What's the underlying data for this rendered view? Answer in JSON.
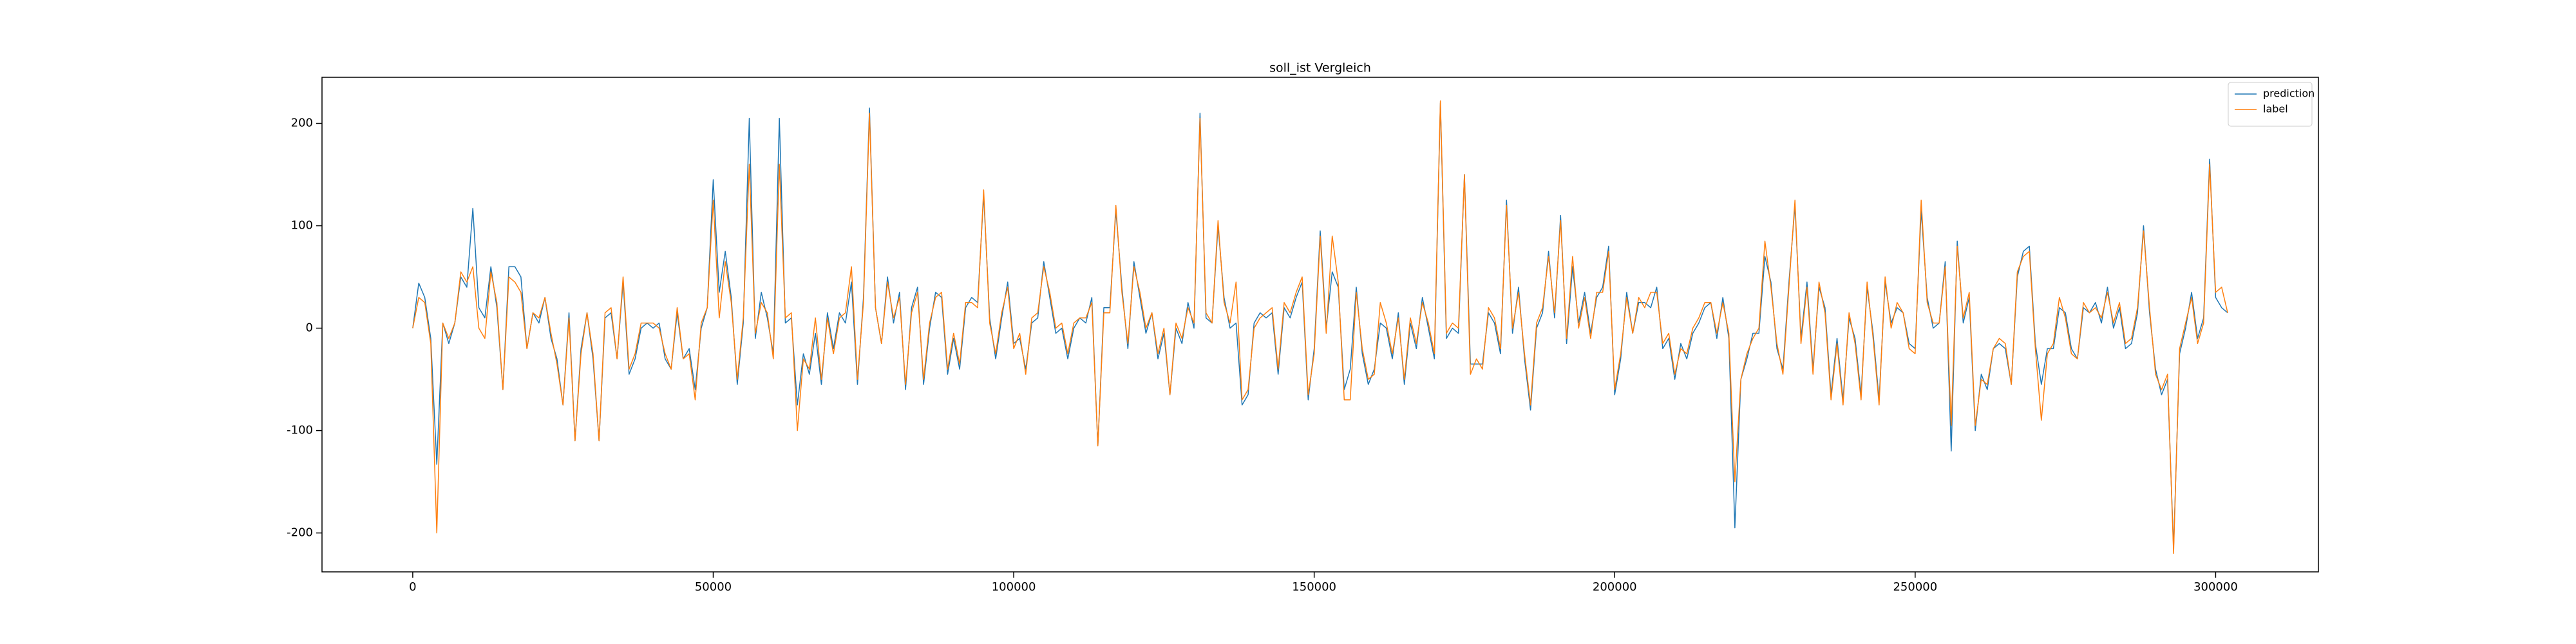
{
  "chart_data": {
    "type": "line",
    "title": "soll_ist Vergleich",
    "title_color": "#ff0000",
    "x": [
      0,
      1000,
      2000,
      3000,
      4000,
      5000,
      6000,
      7000,
      8000,
      9000,
      10000,
      11000,
      12000,
      13000,
      14000,
      15000,
      16000,
      17000,
      18000,
      19000,
      20000,
      21000,
      22000,
      23000,
      24000,
      25000,
      26000,
      27000,
      28000,
      29000,
      30000,
      31000,
      32000,
      33000,
      34000,
      35000,
      36000,
      37000,
      38000,
      39000,
      40000,
      41000,
      42000,
      43000,
      44000,
      45000,
      46000,
      47000,
      48000,
      49000,
      50000,
      51000,
      52000,
      53000,
      54000,
      55000,
      56000,
      57000,
      58000,
      59000,
      60000,
      61000,
      62000,
      63000,
      64000,
      65000,
      66000,
      67000,
      68000,
      69000,
      70000,
      71000,
      72000,
      73000,
      74000,
      75000,
      76000,
      77000,
      78000,
      79000,
      80000,
      81000,
      82000,
      83000,
      84000,
      85000,
      86000,
      87000,
      88000,
      89000,
      90000,
      91000,
      92000,
      93000,
      94000,
      95000,
      96000,
      97000,
      98000,
      99000,
      100000,
      101000,
      102000,
      103000,
      104000,
      105000,
      106000,
      107000,
      108000,
      109000,
      110000,
      111000,
      112000,
      113000,
      114000,
      115000,
      116000,
      117000,
      118000,
      119000,
      120000,
      121000,
      122000,
      123000,
      124000,
      125000,
      126000,
      127000,
      128000,
      129000,
      130000,
      131000,
      132000,
      133000,
      134000,
      135000,
      136000,
      137000,
      138000,
      139000,
      140000,
      141000,
      142000,
      143000,
      144000,
      145000,
      146000,
      147000,
      148000,
      149000,
      150000,
      151000,
      152000,
      153000,
      154000,
      155000,
      156000,
      157000,
      158000,
      159000,
      160000,
      161000,
      162000,
      163000,
      164000,
      165000,
      166000,
      167000,
      168000,
      169000,
      170000,
      171000,
      172000,
      173000,
      174000,
      175000,
      176000,
      177000,
      178000,
      179000,
      180000,
      181000,
      182000,
      183000,
      184000,
      185000,
      186000,
      187000,
      188000,
      189000,
      190000,
      191000,
      192000,
      193000,
      194000,
      195000,
      196000,
      197000,
      198000,
      199000,
      200000,
      201000,
      202000,
      203000,
      204000,
      205000,
      206000,
      207000,
      208000,
      209000,
      210000,
      211000,
      212000,
      213000,
      214000,
      215000,
      216000,
      217000,
      218000,
      219000,
      220000,
      221000,
      222000,
      223000,
      224000,
      225000,
      226000,
      227000,
      228000,
      229000,
      230000,
      231000,
      232000,
      233000,
      234000,
      235000,
      236000,
      237000,
      238000,
      239000,
      240000,
      241000,
      242000,
      243000,
      244000,
      245000,
      246000,
      247000,
      248000,
      249000,
      250000,
      251000,
      252000,
      253000,
      254000,
      255000,
      256000,
      257000,
      258000,
      259000,
      260000,
      261000,
      262000,
      263000,
      264000,
      265000,
      266000,
      267000,
      268000,
      269000,
      270000,
      271000,
      272000,
      273000,
      274000,
      275000,
      276000,
      277000,
      278000,
      279000,
      280000,
      281000,
      282000,
      283000,
      284000,
      285000,
      286000,
      287000,
      288000,
      289000,
      290000,
      291000,
      292000,
      293000,
      294000,
      295000,
      296000,
      297000,
      298000,
      299000,
      300000,
      301000,
      302000
    ],
    "series": [
      {
        "name": "prediction",
        "color": "#1f77b4",
        "values": [
          0,
          44,
          30,
          -10,
          -133,
          5,
          -15,
          5,
          50,
          40,
          117,
          20,
          10,
          60,
          20,
          -60,
          60,
          60,
          50,
          -20,
          15,
          5,
          30,
          -10,
          -30,
          -75,
          15,
          -110,
          -20,
          15,
          -30,
          -110,
          10,
          15,
          -30,
          45,
          -45,
          -30,
          0,
          5,
          0,
          5,
          -30,
          -40,
          15,
          -30,
          -20,
          -60,
          0,
          20,
          145,
          35,
          75,
          30,
          -55,
          5,
          205,
          -10,
          35,
          10,
          -25,
          205,
          5,
          10,
          -75,
          -25,
          -45,
          -5,
          -55,
          15,
          -20,
          15,
          5,
          45,
          -55,
          30,
          215,
          20,
          -15,
          50,
          5,
          35,
          -60,
          20,
          40,
          -55,
          0,
          35,
          30,
          -45,
          -10,
          -40,
          20,
          30,
          25,
          130,
          10,
          -30,
          10,
          45,
          -15,
          -10,
          -40,
          5,
          10,
          65,
          30,
          -5,
          0,
          -30,
          0,
          10,
          5,
          30,
          -115,
          20,
          20,
          115,
          40,
          -20,
          65,
          30,
          -5,
          15,
          -30,
          -5,
          -65,
          0,
          -15,
          25,
          0,
          210,
          10,
          5,
          100,
          30,
          0,
          5,
          -75,
          -65,
          5,
          15,
          10,
          15,
          -45,
          20,
          10,
          30,
          45,
          -70,
          -20,
          95,
          0,
          55,
          40,
          -60,
          -40,
          40,
          -25,
          -55,
          -40,
          5,
          0,
          -30,
          15,
          -55,
          5,
          -20,
          30,
          0,
          -30,
          220,
          -10,
          0,
          -5,
          150,
          -35,
          -35,
          -35,
          15,
          5,
          -25,
          125,
          -5,
          40,
          -30,
          -80,
          0,
          15,
          75,
          10,
          110,
          -15,
          60,
          5,
          35,
          -5,
          30,
          40,
          80,
          -65,
          -30,
          35,
          -5,
          25,
          25,
          20,
          40,
          -20,
          -10,
          -50,
          -15,
          -30,
          -5,
          5,
          20,
          25,
          -10,
          30,
          -10,
          -195,
          -50,
          -30,
          -5,
          -5,
          70,
          45,
          -20,
          -40,
          45,
          120,
          -10,
          45,
          -40,
          40,
          20,
          -65,
          -10,
          -70,
          10,
          -10,
          -65,
          40,
          -5,
          -70,
          45,
          5,
          20,
          15,
          -15,
          -20,
          115,
          30,
          0,
          5,
          65,
          -120,
          85,
          5,
          30,
          -100,
          -45,
          -60,
          -20,
          -15,
          -20,
          -55,
          50,
          75,
          80,
          -15,
          -55,
          -20,
          -20,
          20,
          15,
          -20,
          -30,
          20,
          15,
          25,
          5,
          40,
          0,
          20,
          -20,
          -15,
          15,
          100,
          15,
          -40,
          -65,
          -50,
          -215,
          -25,
          0,
          35,
          -10,
          10,
          165,
          30,
          20,
          15
        ]
      },
      {
        "name": "label",
        "color": "#ff7f0e",
        "values": [
          0,
          30,
          25,
          -15,
          -200,
          5,
          -10,
          5,
          55,
          45,
          60,
          0,
          -10,
          55,
          25,
          -60,
          50,
          45,
          35,
          -20,
          15,
          10,
          30,
          -5,
          -35,
          -75,
          10,
          -110,
          -25,
          15,
          -25,
          -110,
          15,
          20,
          -30,
          50,
          -40,
          -25,
          5,
          5,
          5,
          0,
          -25,
          -40,
          20,
          -30,
          -25,
          -70,
          5,
          20,
          125,
          10,
          65,
          25,
          -50,
          10,
          160,
          -5,
          25,
          15,
          -30,
          160,
          10,
          15,
          -100,
          -30,
          -40,
          10,
          -50,
          10,
          -25,
          10,
          15,
          60,
          -50,
          25,
          210,
          20,
          -15,
          45,
          10,
          30,
          -55,
          15,
          35,
          -50,
          5,
          30,
          35,
          -40,
          -5,
          -35,
          25,
          25,
          20,
          135,
          5,
          -25,
          15,
          40,
          -20,
          -5,
          -45,
          10,
          15,
          60,
          35,
          0,
          5,
          -25,
          5,
          10,
          10,
          25,
          -115,
          15,
          15,
          120,
          35,
          -15,
          60,
          35,
          0,
          15,
          -25,
          0,
          -65,
          5,
          -10,
          20,
          5,
          205,
          15,
          5,
          105,
          25,
          5,
          45,
          -70,
          -60,
          0,
          10,
          15,
          20,
          -40,
          25,
          15,
          35,
          50,
          -65,
          -25,
          90,
          -5,
          90,
          45,
          -70,
          -70,
          35,
          -20,
          -50,
          -45,
          25,
          5,
          -25,
          10,
          -50,
          10,
          -15,
          25,
          5,
          -25,
          222,
          -5,
          5,
          0,
          150,
          -45,
          -30,
          -40,
          20,
          10,
          -20,
          120,
          0,
          35,
          -25,
          -75,
          5,
          20,
          70,
          15,
          105,
          -10,
          70,
          0,
          30,
          -10,
          35,
          35,
          75,
          -60,
          -25,
          30,
          -5,
          30,
          20,
          35,
          35,
          -15,
          -5,
          -45,
          -20,
          -25,
          0,
          10,
          25,
          25,
          -5,
          25,
          -5,
          -150,
          -50,
          -25,
          -10,
          0,
          85,
          40,
          -15,
          -45,
          40,
          125,
          -15,
          40,
          -45,
          45,
          15,
          -70,
          -15,
          -75,
          15,
          -15,
          -70,
          45,
          -10,
          -75,
          50,
          0,
          25,
          15,
          -20,
          -25,
          125,
          25,
          5,
          5,
          60,
          -95,
          80,
          10,
          35,
          -95,
          -50,
          -55,
          -20,
          -10,
          -15,
          -55,
          55,
          70,
          75,
          -20,
          -90,
          -25,
          -15,
          30,
          10,
          -25,
          -30,
          25,
          15,
          20,
          10,
          35,
          5,
          25,
          -15,
          -10,
          20,
          95,
          20,
          -45,
          -60,
          -45,
          -220,
          -20,
          5,
          30,
          -15,
          5,
          160,
          35,
          40,
          15
        ]
      }
    ],
    "xlim": [
      -15100,
      317100
    ],
    "xticks": [
      0,
      50000,
      100000,
      150000,
      200000,
      250000,
      300000
    ],
    "ylim": [
      -238,
      245
    ],
    "yticks": [
      -200,
      -100,
      0,
      100,
      200
    ],
    "legend": "upper right",
    "grid": false
  }
}
